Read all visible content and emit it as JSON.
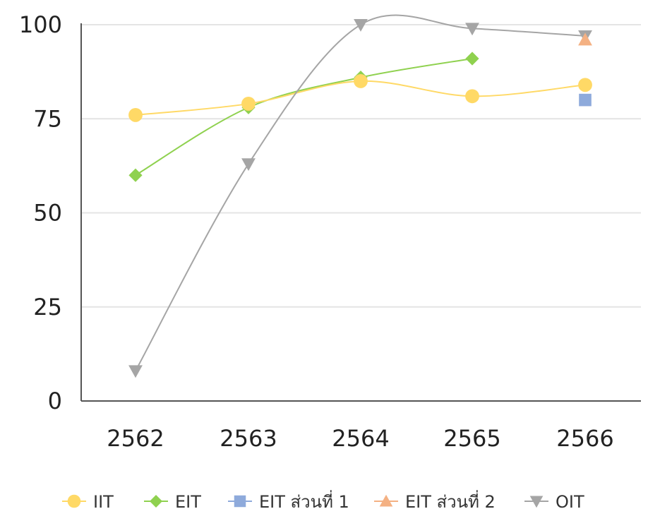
{
  "chart_data": {
    "type": "line",
    "title": "",
    "xlabel": "",
    "ylabel": "",
    "categories": [
      "2562",
      "2563",
      "2564",
      "2565",
      "2566"
    ],
    "y_ticks": [
      0,
      25,
      50,
      75,
      100
    ],
    "ylim": [
      0,
      100
    ],
    "grid": true,
    "legend_position": "bottom",
    "series": [
      {
        "name": "IIT",
        "values": [
          76,
          79,
          85,
          81,
          84
        ],
        "color": "#ffd966",
        "marker": "circle",
        "line": true
      },
      {
        "name": "EIT",
        "values": [
          60,
          78,
          86,
          91,
          null
        ],
        "color": "#8fd14f",
        "marker": "diamond",
        "line": true
      },
      {
        "name": "EIT ส่วนที่ 1",
        "values": [
          null,
          null,
          null,
          null,
          80
        ],
        "color": "#8eaadb",
        "marker": "square",
        "line": false
      },
      {
        "name": "EIT ส่วนที่ 2",
        "values": [
          null,
          null,
          null,
          null,
          96
        ],
        "color": "#f4b183",
        "marker": "triangle-up",
        "line": false
      },
      {
        "name": "OIT",
        "values": [
          8,
          63,
          100,
          99,
          97
        ],
        "color": "#a5a5a5",
        "marker": "triangle-down",
        "line": true
      }
    ]
  }
}
